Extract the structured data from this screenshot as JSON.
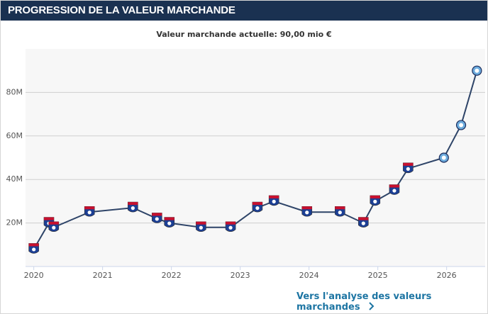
{
  "header": {
    "title": "PROGRESSION DE LA VALEUR MARCHANDE"
  },
  "chart_data": {
    "type": "line",
    "title": "Valeur marchande actuelle: 90,00 mio €",
    "x": [
      2020.0,
      2020.22,
      2020.29,
      2020.81,
      2021.44,
      2021.79,
      2021.97,
      2022.43,
      2022.86,
      2023.25,
      2023.49,
      2023.97,
      2024.45,
      2024.79,
      2024.96,
      2025.24,
      2025.44,
      2025.96,
      2026.21,
      2026.44
    ],
    "series": [
      {
        "color": "#2e4468",
        "values": [
          8,
          20,
          18,
          25,
          27,
          22,
          20,
          18,
          18,
          27,
          30,
          25,
          25,
          20,
          30,
          35,
          45,
          50,
          65,
          90
        ],
        "point_colors": [
          "#c8102e",
          "#c8102e",
          "#c8102e",
          "#c8102e",
          "#c8102e",
          "#c8102e",
          "#c8102e",
          "#c8102e",
          "#c8102e",
          "#c8102e",
          "#c8102e",
          "#c8102e",
          "#c8102e",
          "#c8102e",
          "#c8102e",
          "#c8102e",
          "#c8102e",
          "#6cabdd",
          "#6cabdd",
          "#6cabdd"
        ]
      }
    ],
    "xlim": [
      2019.88,
      2026.56
    ],
    "xticks": [
      2020,
      2021,
      2022,
      2023,
      2024,
      2025,
      2026
    ],
    "ylim": [
      0,
      100
    ],
    "yticks": [
      {
        "value": 20,
        "label": "20M"
      },
      {
        "value": 40,
        "label": "40M"
      },
      {
        "value": 60,
        "label": "60M"
      },
      {
        "value": 80,
        "label": "80M"
      }
    ],
    "grid": true
  },
  "link": {
    "label": "Vers l'analyse des valeurs marchandes"
  }
}
